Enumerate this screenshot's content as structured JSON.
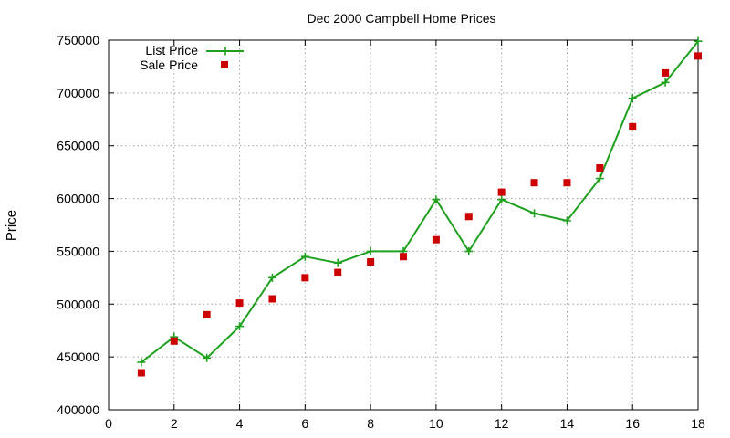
{
  "chart_data": {
    "type": "line",
    "title": "Dec 2000 Campbell Home Prices",
    "xlabel": "",
    "ylabel": "Price",
    "xlim": [
      0,
      18
    ],
    "ylim": [
      400000,
      750000
    ],
    "x_ticks": [
      "0",
      "2",
      "4",
      "6",
      "8",
      "10",
      "12",
      "14",
      "16",
      "18"
    ],
    "y_ticks": [
      "400000",
      "450000",
      "500000",
      "550000",
      "600000",
      "650000",
      "700000",
      "750000"
    ],
    "grid": true,
    "legend_position": "top-left",
    "series": [
      {
        "name": "List Price",
        "style": "line+points",
        "color": "#1fa01f",
        "x": [
          1,
          2,
          3,
          4,
          5,
          6,
          7,
          8,
          9,
          10,
          11,
          12,
          13,
          14,
          15,
          16,
          17,
          18
        ],
        "y": [
          445000,
          469000,
          449000,
          479000,
          525000,
          545000,
          539000,
          550000,
          550000,
          599000,
          550000,
          599000,
          586000,
          579000,
          619000,
          695000,
          710000,
          749000
        ]
      },
      {
        "name": "Sale Price",
        "style": "points",
        "color": "#cc0000",
        "x": [
          1,
          2,
          3,
          4,
          5,
          6,
          7,
          8,
          9,
          10,
          11,
          12,
          13,
          14,
          15,
          16,
          17,
          18
        ],
        "y": [
          435000,
          465000,
          490000,
          501000,
          505000,
          525000,
          530000,
          540000,
          545000,
          561000,
          583000,
          606000,
          615000,
          615000,
          629000,
          668000,
          719000,
          735000
        ]
      }
    ]
  }
}
